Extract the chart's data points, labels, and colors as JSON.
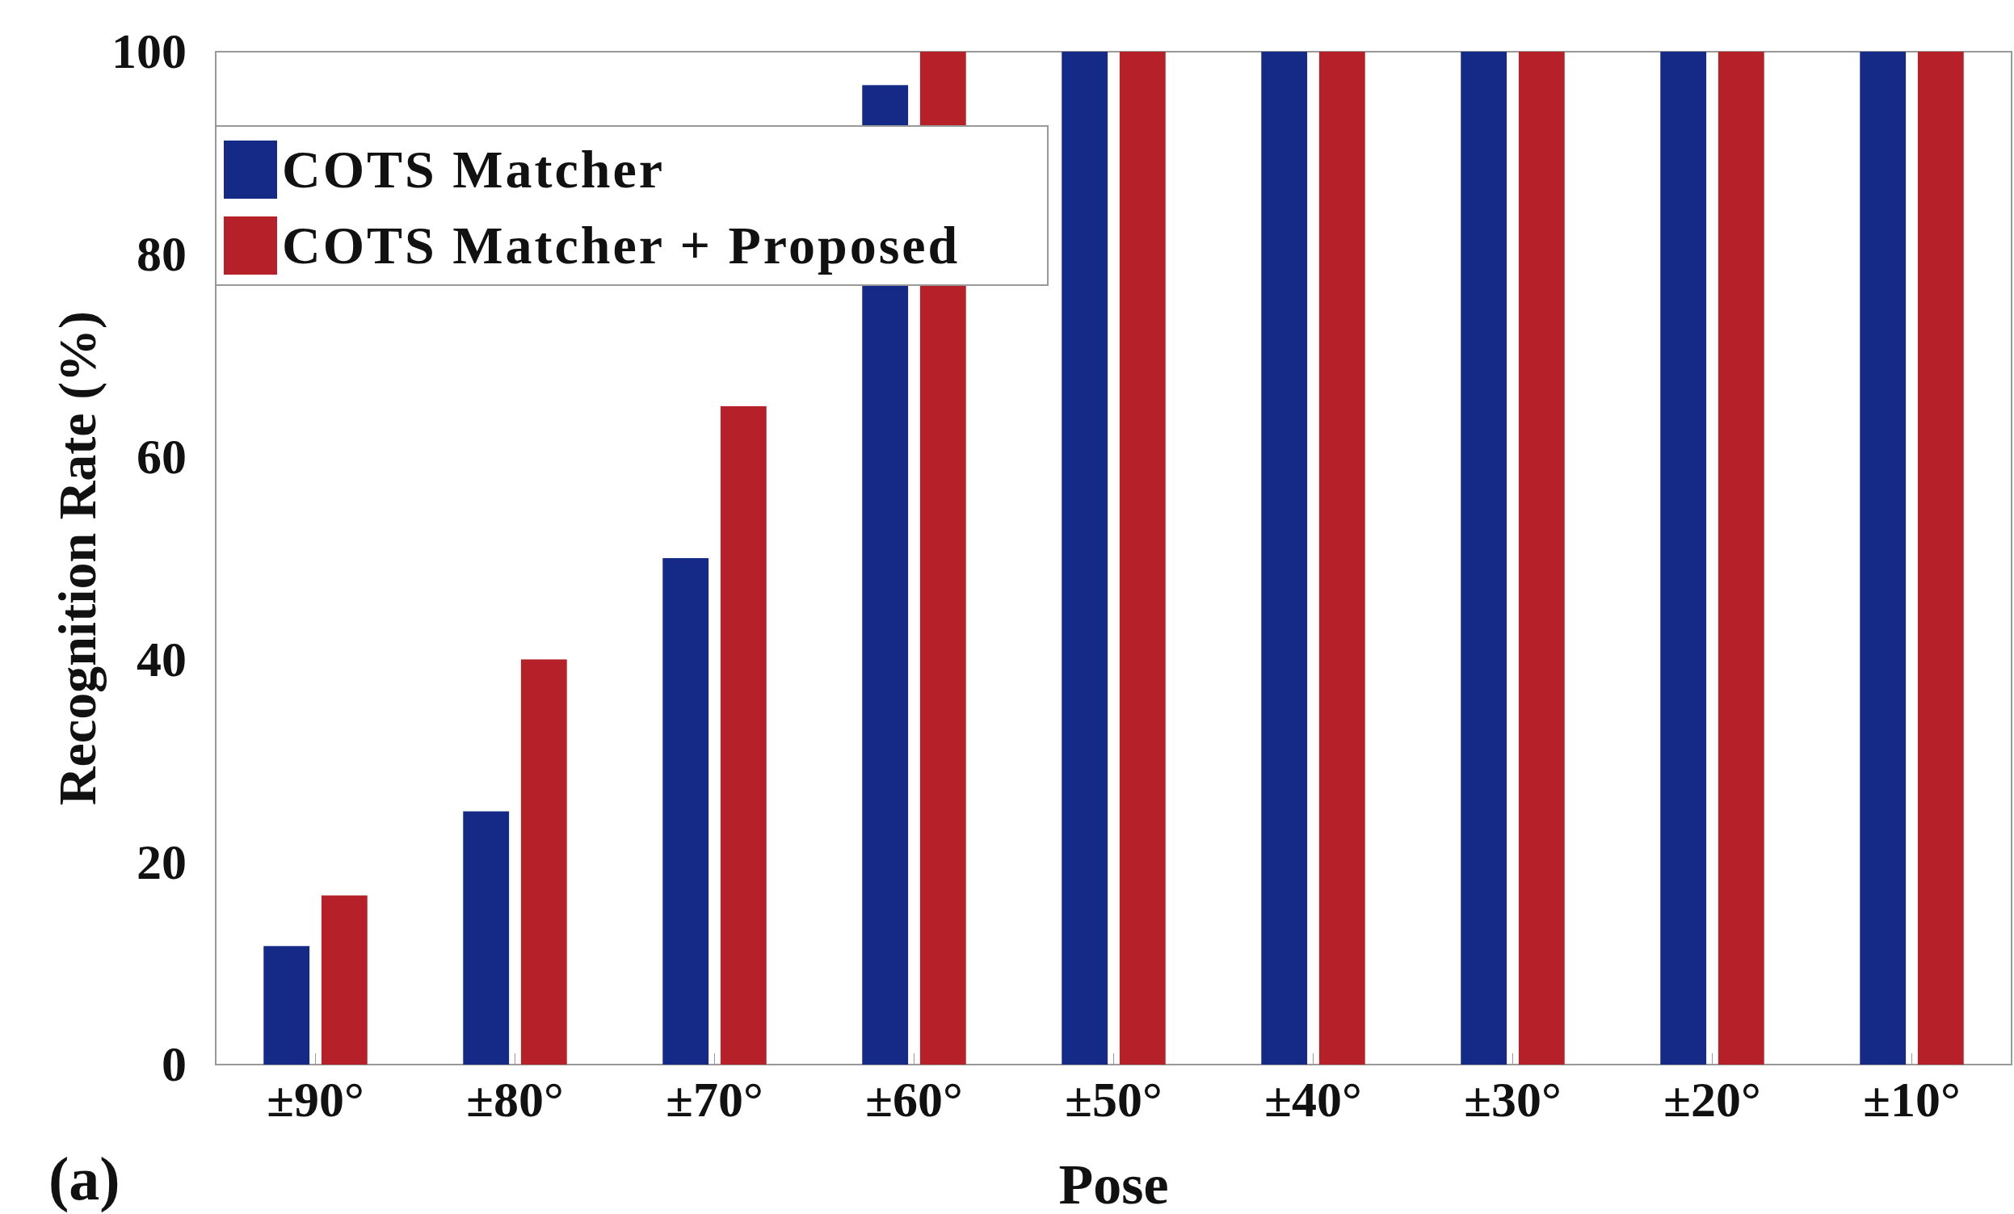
{
  "chart_data": {
    "type": "bar",
    "xlabel": "Pose",
    "ylabel": "Recognition Rate (%)",
    "categories": [
      "±90°",
      "±80°",
      "±70°",
      "±60°",
      "±50°",
      "±40°",
      "±30°",
      "±20°",
      "±10°"
    ],
    "series": [
      {
        "name": "COTS Matcher",
        "color": "#142a86",
        "values": [
          11.7,
          25,
          50,
          96.7,
          100,
          100,
          100,
          100,
          100
        ]
      },
      {
        "name": "COTS Matcher + Proposed",
        "color": "#b52029",
        "values": [
          16.7,
          40,
          65,
          100,
          100,
          100,
          100,
          100,
          100
        ]
      }
    ],
    "ylim": [
      0,
      100
    ],
    "yticks": [
      0,
      20,
      40,
      60,
      80,
      100
    ],
    "grid": false,
    "legend": "top left",
    "annotations": [
      "(a)"
    ]
  }
}
